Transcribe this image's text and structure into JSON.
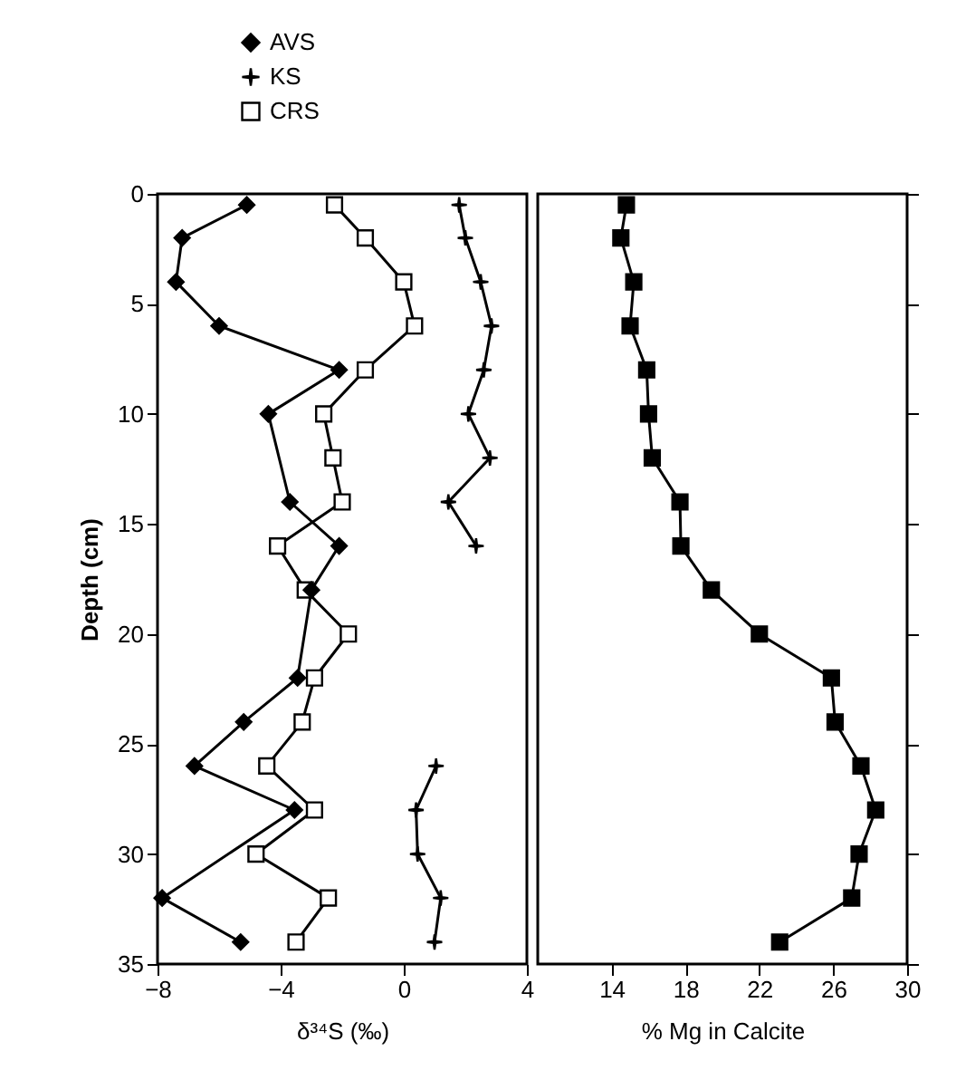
{
  "chart_data": [
    {
      "type": "line",
      "xlabel": "δ³⁴S (‰)",
      "ylabel": "Depth (cm)",
      "xlim": [
        -8,
        4
      ],
      "xticks": [
        -8,
        -4,
        0,
        4
      ],
      "ylim": [
        35,
        0
      ],
      "yticks": [
        0,
        5,
        10,
        15,
        20,
        25,
        30,
        35
      ],
      "legend": "top left",
      "grid": false,
      "line_style": "solid",
      "series": [
        {
          "name": "AVS",
          "color": "#000000",
          "marker": "diamond",
          "x": [
            -5.1,
            -7.2,
            -7.4,
            -6.0,
            -2.1,
            -4.4,
            -3.7,
            -2.1,
            -3.0,
            -3.45,
            -5.2,
            -6.8,
            -3.55,
            -7.85,
            -5.3
          ],
          "values": [
            0.5,
            2,
            4,
            6,
            8,
            10,
            14,
            16,
            18,
            22,
            24,
            26,
            28,
            32,
            34
          ]
        },
        {
          "name": "KS",
          "color": "#000000",
          "marker": "cross",
          "x": [
            1.8,
            2.0,
            2.5,
            2.85,
            2.6,
            2.1,
            2.8,
            1.45,
            2.35,
            null,
            1.05,
            0.4,
            0.45,
            1.2,
            1.0
          ],
          "values": [
            0.5,
            2,
            4,
            6,
            8,
            10,
            12,
            14,
            16,
            null,
            26,
            28,
            30,
            32,
            34
          ]
        },
        {
          "name": "CRS",
          "color": "#000000",
          "marker": "square",
          "x": [
            -2.25,
            -1.25,
            0,
            0.35,
            -1.25,
            -2.6,
            -2.3,
            -2.0,
            -4.1,
            -3.2,
            -1.8,
            -2.9,
            -3.3,
            -4.45,
            -2.9,
            -4.8,
            -2.45,
            -3.5
          ],
          "values": [
            0.5,
            2,
            4,
            6,
            8,
            10,
            12,
            14,
            16,
            18,
            20,
            22,
            24,
            26,
            28,
            30,
            32,
            34
          ]
        }
      ]
    },
    {
      "type": "line",
      "xlabel": "% Mg in Calcite",
      "xlim": [
        10,
        30
      ],
      "xticks": [
        14,
        18,
        22,
        26,
        30
      ],
      "ylim": [
        35,
        0
      ],
      "yticks": [
        0,
        5,
        10,
        15,
        20,
        25,
        30,
        35
      ],
      "tick_labels": "x",
      "legend": false,
      "grid": false,
      "line_style": "solid",
      "series": [
        {
          "color": "#000000",
          "marker": "square",
          "x": [
            14.8,
            14.5,
            15.2,
            15.0,
            15.9,
            16.0,
            16.2,
            17.7,
            17.75,
            19.4,
            22.0,
            25.9,
            26.1,
            27.5,
            28.3,
            27.4,
            27.0,
            23.1
          ],
          "values": [
            0.5,
            2,
            4,
            6,
            8,
            10,
            12,
            14,
            16,
            18,
            20,
            22,
            24,
            26,
            28,
            30,
            32,
            34
          ]
        }
      ]
    }
  ]
}
